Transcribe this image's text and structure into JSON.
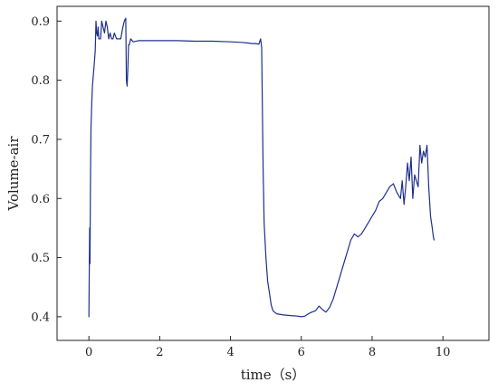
{
  "chart_data": {
    "type": "line",
    "title": "",
    "xlabel": "time（s）",
    "ylabel": "Volume-air",
    "xlim": [
      -0.9,
      11.3
    ],
    "ylim": [
      0.36,
      0.925
    ],
    "xticks": [
      0,
      2,
      4,
      6,
      8,
      10
    ],
    "yticks": [
      0.4,
      0.5,
      0.6,
      0.7,
      0.8,
      0.9
    ],
    "xtick_labels": [
      "0",
      "2",
      "4",
      "6",
      "8",
      "10"
    ],
    "ytick_labels": [
      "0.4",
      "0.5",
      "0.6",
      "0.7",
      "0.8",
      "0.9"
    ],
    "grid": false,
    "legend": "none",
    "line_color": "#1f2f8c",
    "series": [
      {
        "x": [
          0.0,
          0.01,
          0.02,
          0.03,
          0.04,
          0.05,
          0.06,
          0.08,
          0.1,
          0.14,
          0.18,
          0.2,
          0.22,
          0.24,
          0.26,
          0.28,
          0.3,
          0.33,
          0.36,
          0.4,
          0.44,
          0.48,
          0.52,
          0.56,
          0.6,
          0.64,
          0.68,
          0.72,
          0.78,
          0.84,
          0.9,
          0.96,
          1.0,
          1.04,
          1.06,
          1.08,
          1.1,
          1.12,
          1.14,
          1.18,
          1.25,
          1.4,
          1.7,
          2.0,
          2.5,
          3.0,
          3.5,
          4.0,
          4.3,
          4.5,
          4.6,
          4.7,
          4.8,
          4.85,
          4.88,
          4.9,
          4.92,
          4.95,
          5.0,
          5.05,
          5.1,
          5.15,
          5.2,
          5.3,
          5.5,
          5.7,
          5.9,
          6.0,
          6.1,
          6.2,
          6.3,
          6.4,
          6.5,
          6.6,
          6.7,
          6.8,
          6.9,
          7.0,
          7.1,
          7.2,
          7.3,
          7.4,
          7.5,
          7.6,
          7.7,
          7.8,
          7.9,
          8.0,
          8.1,
          8.2,
          8.3,
          8.4,
          8.5,
          8.6,
          8.7,
          8.8,
          8.85,
          8.9,
          8.95,
          9.0,
          9.05,
          9.1,
          9.15,
          9.2,
          9.25,
          9.3,
          9.35,
          9.4,
          9.45,
          9.5,
          9.55,
          9.6,
          9.65,
          9.7,
          9.73,
          9.75
        ],
        "y": [
          0.4,
          0.48,
          0.55,
          0.49,
          0.6,
          0.66,
          0.72,
          0.76,
          0.79,
          0.82,
          0.85,
          0.9,
          0.88,
          0.875,
          0.89,
          0.87,
          0.87,
          0.87,
          0.9,
          0.89,
          0.88,
          0.9,
          0.89,
          0.87,
          0.88,
          0.87,
          0.87,
          0.88,
          0.87,
          0.87,
          0.87,
          0.89,
          0.9,
          0.905,
          0.8,
          0.79,
          0.82,
          0.86,
          0.86,
          0.87,
          0.865,
          0.867,
          0.867,
          0.867,
          0.867,
          0.866,
          0.866,
          0.865,
          0.864,
          0.863,
          0.862,
          0.862,
          0.861,
          0.87,
          0.855,
          0.75,
          0.65,
          0.56,
          0.5,
          0.46,
          0.44,
          0.42,
          0.41,
          0.405,
          0.403,
          0.402,
          0.401,
          0.4,
          0.401,
          0.405,
          0.408,
          0.41,
          0.418,
          0.412,
          0.408,
          0.416,
          0.43,
          0.45,
          0.47,
          0.49,
          0.51,
          0.53,
          0.54,
          0.535,
          0.54,
          0.55,
          0.56,
          0.57,
          0.58,
          0.595,
          0.6,
          0.61,
          0.62,
          0.625,
          0.61,
          0.6,
          0.63,
          0.59,
          0.62,
          0.66,
          0.63,
          0.67,
          0.6,
          0.64,
          0.63,
          0.62,
          0.69,
          0.66,
          0.68,
          0.67,
          0.69,
          0.62,
          0.57,
          0.55,
          0.535,
          0.53
        ]
      }
    ]
  }
}
